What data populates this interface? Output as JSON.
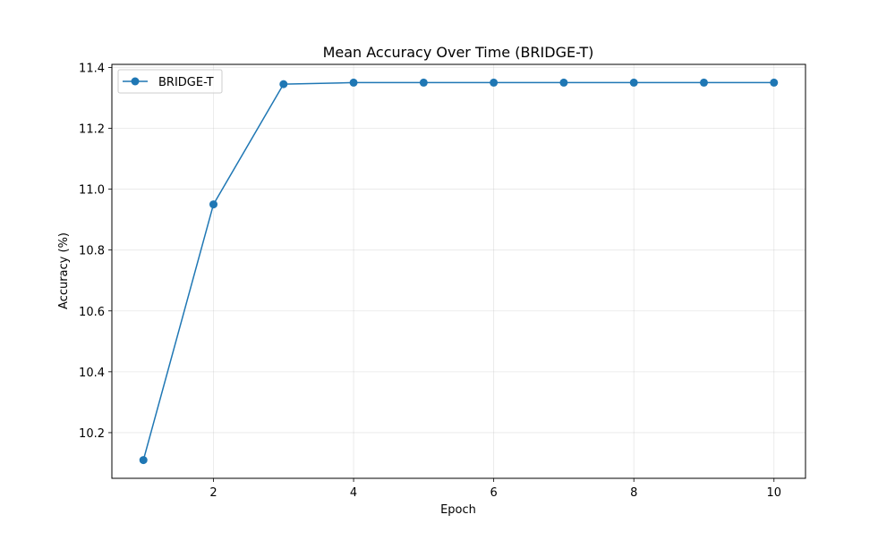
{
  "chart_data": {
    "type": "line",
    "title": "Mean Accuracy Over Time (BRIDGE-T)",
    "xlabel": "Epoch",
    "ylabel": "Accuracy (%)",
    "x": [
      1,
      2,
      3,
      4,
      5,
      6,
      7,
      8,
      9,
      10
    ],
    "series": [
      {
        "name": "BRIDGE-T",
        "values": [
          10.11,
          10.95,
          11.345,
          11.35,
          11.35,
          11.35,
          11.35,
          11.35,
          11.35,
          11.35
        ],
        "color": "#1f77b4"
      }
    ],
    "xlim": [
      0.55,
      10.45
    ],
    "ylim": [
      10.05,
      11.41
    ],
    "xticks": [
      2,
      4,
      6,
      8,
      10
    ],
    "yticks": [
      10.2,
      10.4,
      10.6,
      10.8,
      11.0,
      11.2,
      11.4
    ],
    "ytick_labels": [
      "10.2",
      "10.4",
      "10.6",
      "10.8",
      "11.0",
      "11.2",
      "11.4"
    ],
    "grid": true,
    "legend_position": "top-left"
  }
}
